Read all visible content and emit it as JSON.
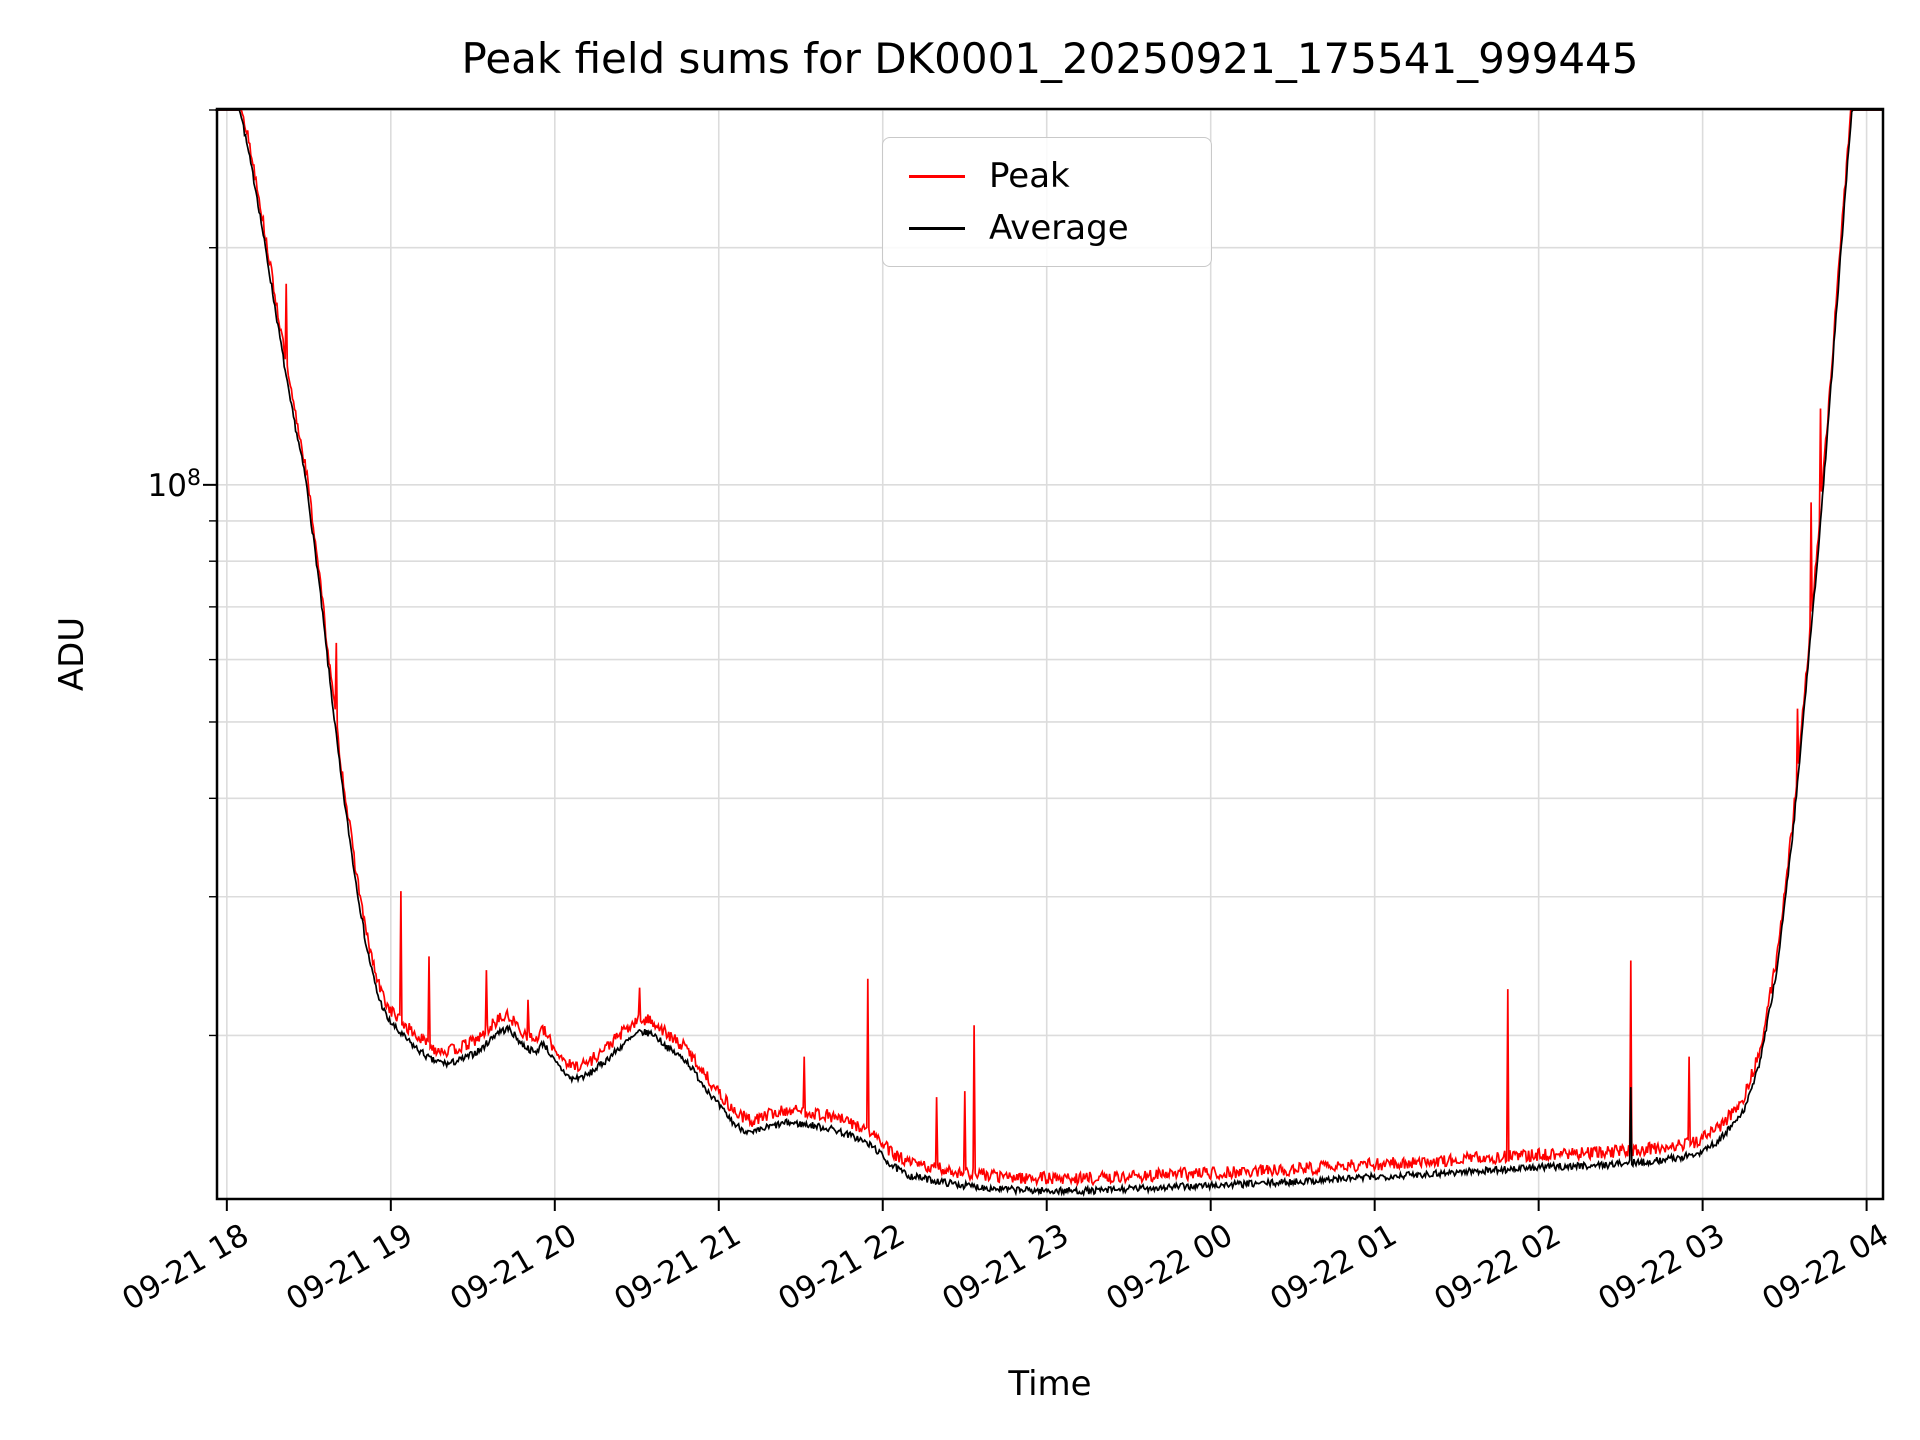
{
  "title": "Peak field sums for DK0001_20250921_175541_999445",
  "axes": {
    "xlabel": "Time",
    "ylabel": "ADU",
    "y_tick": {
      "base": "10",
      "exp": "8"
    }
  },
  "legend": [
    {
      "label": "Peak",
      "color": "#ff0000"
    },
    {
      "label": "Average",
      "color": "#000000"
    }
  ],
  "colors": {
    "grid": "#dcdcdc",
    "frame": "#000000",
    "background": "#ffffff"
  },
  "chart_data": {
    "type": "line",
    "title": "Peak field sums for DK0001_20250921_175541_999445",
    "xlabel": "Time",
    "ylabel": "ADU",
    "y_scale": "log",
    "grid": true,
    "legend_position": "upper center-left",
    "xlim": [
      -0.06,
      10.1
    ],
    "ylim": [
      12400000,
      300000000
    ],
    "x_ticks": [
      {
        "t": 0,
        "label": "09-21 18"
      },
      {
        "t": 1,
        "label": "09-21 19"
      },
      {
        "t": 2,
        "label": "09-21 20"
      },
      {
        "t": 3,
        "label": "09-21 21"
      },
      {
        "t": 4,
        "label": "09-21 22"
      },
      {
        "t": 5,
        "label": "09-21 23"
      },
      {
        "t": 6,
        "label": "09-22 00"
      },
      {
        "t": 7,
        "label": "09-22 01"
      },
      {
        "t": 8,
        "label": "09-22 02"
      },
      {
        "t": 9,
        "label": "09-22 03"
      },
      {
        "t": 10,
        "label": "09-22 04"
      }
    ],
    "y_major_ticks": [
      100000000
    ],
    "y_gridlines": [
      20000000,
      30000000,
      40000000,
      50000000,
      60000000,
      70000000,
      80000000,
      90000000,
      100000000,
      200000000,
      300000000
    ],
    "series": [
      {
        "name": "Peak",
        "color": "#ff0000",
        "derived_from": "Average",
        "typical_excess_factor": 1.04,
        "spikes": [
          [
            0.36,
            180000000
          ],
          [
            0.67,
            63000000
          ],
          [
            1.06,
            30500000
          ],
          [
            1.23,
            25200000
          ],
          [
            1.58,
            24200000
          ],
          [
            1.84,
            22200000
          ],
          [
            2.52,
            23000000
          ],
          [
            3.52,
            18800000
          ],
          [
            3.91,
            23600000
          ],
          [
            4.33,
            16700000
          ],
          [
            4.5,
            17000000
          ],
          [
            4.56,
            20600000
          ],
          [
            7.81,
            22900000
          ],
          [
            8.56,
            24900000
          ],
          [
            8.92,
            18800000
          ],
          [
            9.58,
            52000000
          ],
          [
            9.66,
            95000000
          ],
          [
            9.72,
            125000000
          ]
        ]
      },
      {
        "name": "Average",
        "color": "#000000",
        "spikes": [
          [
            8.56,
            17200000
          ]
        ],
        "points": [
          [
            -0.07,
            450000000
          ],
          [
            0.0,
            360000000
          ],
          [
            0.08,
            300000000
          ],
          [
            0.18,
            235000000
          ],
          [
            0.28,
            175000000
          ],
          [
            0.38,
            130000000
          ],
          [
            0.48,
            102000000
          ],
          [
            0.56,
            76000000
          ],
          [
            0.63,
            56000000
          ],
          [
            0.7,
            42000000
          ],
          [
            0.78,
            32000000
          ],
          [
            0.85,
            26000000
          ],
          [
            0.92,
            22500000
          ],
          [
            0.98,
            21000000
          ],
          [
            1.05,
            20200000
          ],
          [
            1.15,
            19300000
          ],
          [
            1.25,
            18600000
          ],
          [
            1.35,
            18400000
          ],
          [
            1.45,
            18700000
          ],
          [
            1.55,
            19200000
          ],
          [
            1.65,
            20200000
          ],
          [
            1.72,
            20400000
          ],
          [
            1.8,
            19500000
          ],
          [
            1.88,
            19000000
          ],
          [
            1.93,
            19600000
          ],
          [
            2.0,
            18500000
          ],
          [
            2.1,
            17600000
          ],
          [
            2.2,
            17800000
          ],
          [
            2.3,
            18500000
          ],
          [
            2.42,
            19500000
          ],
          [
            2.52,
            20200000
          ],
          [
            2.6,
            20100000
          ],
          [
            2.7,
            19200000
          ],
          [
            2.8,
            18600000
          ],
          [
            2.9,
            17400000
          ],
          [
            3.0,
            16300000
          ],
          [
            3.1,
            15400000
          ],
          [
            3.2,
            15000000
          ],
          [
            3.3,
            15300000
          ],
          [
            3.42,
            15500000
          ],
          [
            3.55,
            15400000
          ],
          [
            3.7,
            15200000
          ],
          [
            3.85,
            14800000
          ],
          [
            3.95,
            14400000
          ],
          [
            4.05,
            13700000
          ],
          [
            4.15,
            13300000
          ],
          [
            4.3,
            13100000
          ],
          [
            4.5,
            12900000
          ],
          [
            4.75,
            12750000
          ],
          [
            5.0,
            12700000
          ],
          [
            5.3,
            12700000
          ],
          [
            5.6,
            12800000
          ],
          [
            6.0,
            12900000
          ],
          [
            6.4,
            13000000
          ],
          [
            6.8,
            13150000
          ],
          [
            7.2,
            13300000
          ],
          [
            7.6,
            13450000
          ],
          [
            8.0,
            13600000
          ],
          [
            8.4,
            13700000
          ],
          [
            8.7,
            13850000
          ],
          [
            8.95,
            14100000
          ],
          [
            9.1,
            14700000
          ],
          [
            9.25,
            16000000
          ],
          [
            9.35,
            18500000
          ],
          [
            9.45,
            24000000
          ],
          [
            9.55,
            36000000
          ],
          [
            9.63,
            55000000
          ],
          [
            9.7,
            80000000
          ],
          [
            9.76,
            115000000
          ],
          [
            9.82,
            170000000
          ],
          [
            9.88,
            250000000
          ],
          [
            9.93,
            340000000
          ],
          [
            10.0,
            420000000
          ],
          [
            10.1,
            460000000
          ]
        ]
      }
    ]
  }
}
